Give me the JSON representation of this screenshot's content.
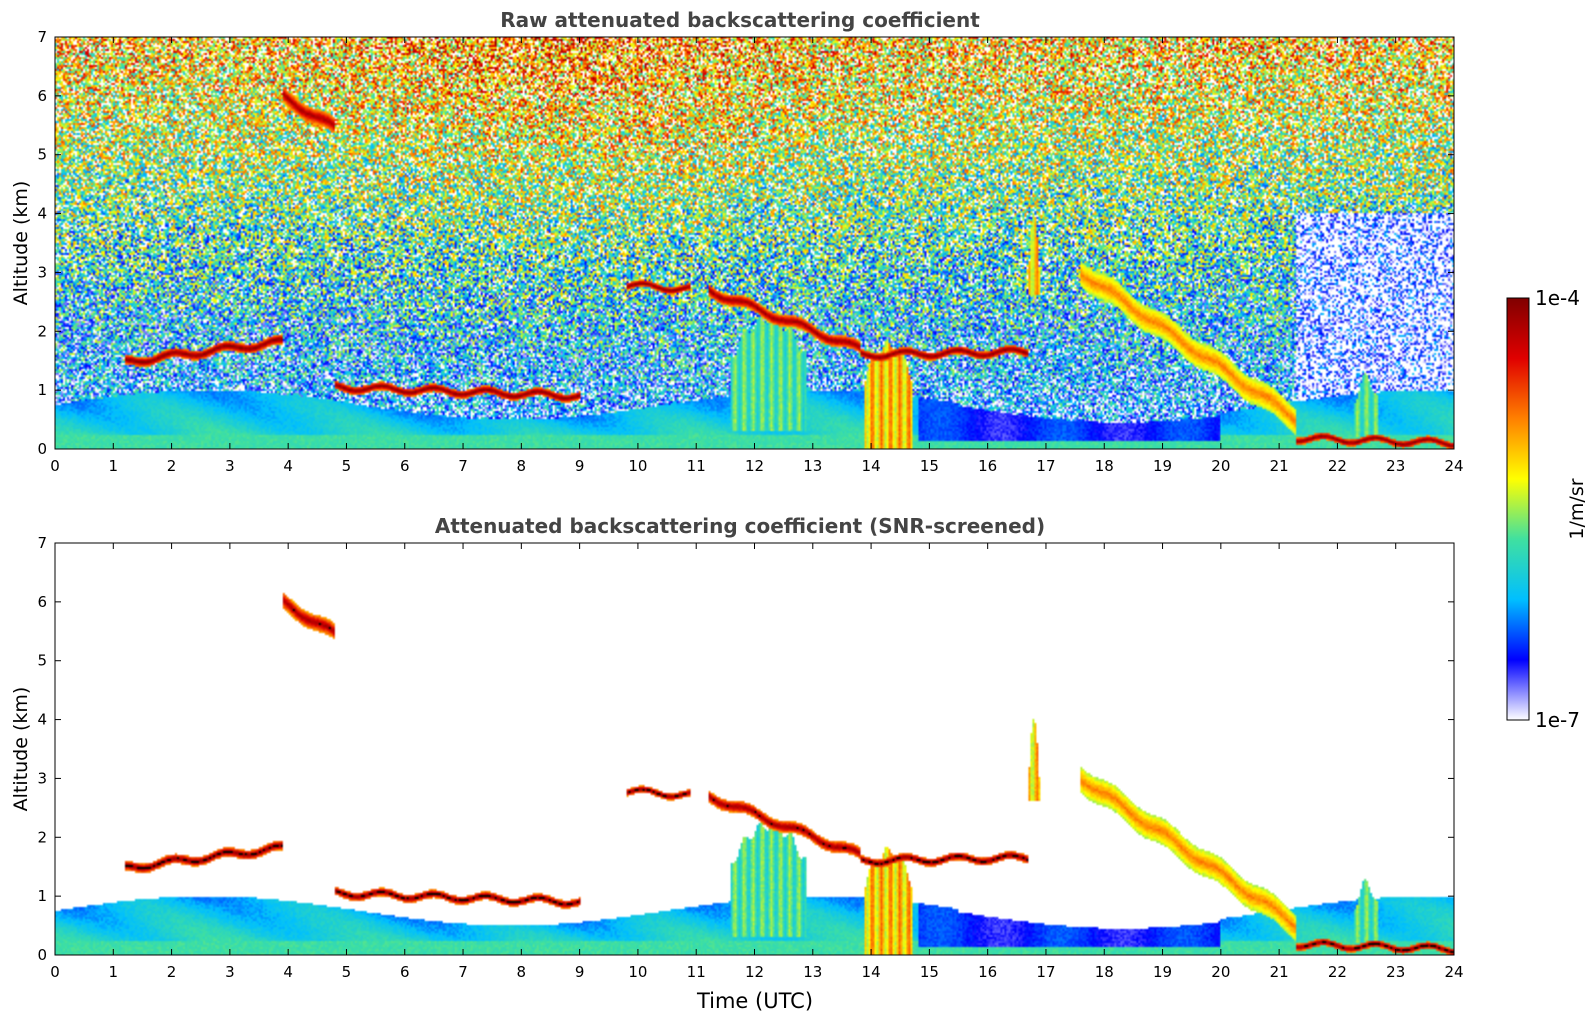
{
  "chart_data": [
    {
      "type": "heatmap",
      "title": "Raw attenuated backscattering coefficient",
      "xlabel": "",
      "ylabel": "Altitude (km)",
      "xlim": [
        0,
        24
      ],
      "ylim": [
        0,
        7
      ],
      "xticks": [
        "0",
        "1",
        "2",
        "3",
        "4",
        "5",
        "6",
        "7",
        "8",
        "9",
        "10",
        "11",
        "12",
        "13",
        "14",
        "15",
        "16",
        "17",
        "18",
        "19",
        "20",
        "21",
        "22",
        "23",
        "24"
      ],
      "yticks": [
        "0",
        "1",
        "2",
        "3",
        "4",
        "5",
        "6",
        "7"
      ],
      "grid": false,
      "screened": false,
      "features": [
        {
          "kind": "layer",
          "t0": 1.2,
          "t1": 3.9,
          "alt0": 1.48,
          "alt1": 1.82,
          "thickness": 0.16,
          "level": 1.0
        },
        {
          "kind": "layer",
          "t0": 4.8,
          "t1": 9.0,
          "alt0": 1.05,
          "alt1": 0.9,
          "thickness": 0.14,
          "level": 1.0
        },
        {
          "kind": "layer",
          "t0": 9.8,
          "t1": 10.9,
          "alt0": 2.78,
          "alt1": 2.72,
          "thickness": 0.12,
          "level": 1.0
        },
        {
          "kind": "layer",
          "t0": 11.2,
          "t1": 13.8,
          "alt0": 2.7,
          "alt1": 1.7,
          "thickness": 0.2,
          "level": 0.97
        },
        {
          "kind": "layer",
          "t0": 13.8,
          "t1": 16.7,
          "alt0": 1.6,
          "alt1": 1.65,
          "thickness": 0.14,
          "level": 1.0
        },
        {
          "kind": "layer",
          "t0": 17.6,
          "t1": 21.3,
          "alt0": 3.0,
          "alt1": 0.5,
          "thickness": 0.45,
          "level": 0.72
        },
        {
          "kind": "layer",
          "t0": 21.3,
          "t1": 24.0,
          "alt0": 0.18,
          "alt1": 0.1,
          "thickness": 0.12,
          "level": 1.0
        },
        {
          "kind": "layer",
          "t0": 3.9,
          "t1": 4.8,
          "alt0": 6.0,
          "alt1": 5.45,
          "thickness": 0.28,
          "level": 0.95
        },
        {
          "kind": "plume",
          "t0": 13.9,
          "t1": 14.7,
          "alt0": 0.0,
          "alt1": 1.75,
          "level": 0.74
        },
        {
          "kind": "plume",
          "t0": 11.6,
          "t1": 12.9,
          "alt0": 0.3,
          "alt1": 2.2,
          "level": 0.5
        },
        {
          "kind": "plume",
          "t0": 16.7,
          "t1": 16.9,
          "alt0": 2.6,
          "alt1": 4.0,
          "level": 0.72
        },
        {
          "kind": "plume",
          "t0": 22.3,
          "t1": 22.7,
          "alt0": 0.2,
          "alt1": 1.2,
          "level": 0.5
        }
      ]
    },
    {
      "type": "heatmap",
      "title": "Attenuated backscattering coefficient (SNR-screened)",
      "xlabel": "Time (UTC)",
      "ylabel": "Altitude (km)",
      "xlim": [
        0,
        24
      ],
      "ylim": [
        0,
        7
      ],
      "xticks": [
        "0",
        "1",
        "2",
        "3",
        "4",
        "5",
        "6",
        "7",
        "8",
        "9",
        "10",
        "11",
        "12",
        "13",
        "14",
        "15",
        "16",
        "17",
        "18",
        "19",
        "20",
        "21",
        "22",
        "23",
        "24"
      ],
      "yticks": [
        "0",
        "1",
        "2",
        "3",
        "4",
        "5",
        "6",
        "7"
      ],
      "grid": false,
      "screened": true,
      "features": [
        {
          "kind": "layer",
          "t0": 1.2,
          "t1": 3.9,
          "alt0": 1.48,
          "alt1": 1.82,
          "thickness": 0.16,
          "level": 1.0
        },
        {
          "kind": "layer",
          "t0": 4.8,
          "t1": 9.0,
          "alt0": 1.05,
          "alt1": 0.9,
          "thickness": 0.14,
          "level": 1.0
        },
        {
          "kind": "layer",
          "t0": 9.8,
          "t1": 10.9,
          "alt0": 2.78,
          "alt1": 2.72,
          "thickness": 0.12,
          "level": 1.0
        },
        {
          "kind": "layer",
          "t0": 11.2,
          "t1": 13.8,
          "alt0": 2.7,
          "alt1": 1.7,
          "thickness": 0.2,
          "level": 0.97
        },
        {
          "kind": "layer",
          "t0": 13.8,
          "t1": 16.7,
          "alt0": 1.6,
          "alt1": 1.65,
          "thickness": 0.14,
          "level": 1.0
        },
        {
          "kind": "layer",
          "t0": 17.6,
          "t1": 21.3,
          "alt0": 3.0,
          "alt1": 0.5,
          "thickness": 0.45,
          "level": 0.72
        },
        {
          "kind": "layer",
          "t0": 21.3,
          "t1": 24.0,
          "alt0": 0.18,
          "alt1": 0.1,
          "thickness": 0.12,
          "level": 1.0
        },
        {
          "kind": "layer",
          "t0": 3.9,
          "t1": 4.8,
          "alt0": 6.0,
          "alt1": 5.45,
          "thickness": 0.28,
          "level": 0.95
        },
        {
          "kind": "plume",
          "t0": 13.9,
          "t1": 14.7,
          "alt0": 0.0,
          "alt1": 1.75,
          "level": 0.74
        },
        {
          "kind": "plume",
          "t0": 11.6,
          "t1": 12.9,
          "alt0": 0.3,
          "alt1": 2.2,
          "level": 0.5
        },
        {
          "kind": "plume",
          "t0": 16.7,
          "t1": 16.9,
          "alt0": 2.6,
          "alt1": 4.0,
          "level": 0.72
        },
        {
          "kind": "plume",
          "t0": 22.3,
          "t1": 22.7,
          "alt0": 0.2,
          "alt1": 1.2,
          "level": 0.5
        }
      ]
    }
  ],
  "colorbar": {
    "label": "1/m/sr",
    "min_label": "1e-7",
    "max_label": "1e-4",
    "scale": "log",
    "colormap": [
      "#ffffff",
      "#0000ff",
      "#00bfff",
      "#40e0a0",
      "#ffff00",
      "#ff8000",
      "#e00000",
      "#800000"
    ]
  }
}
